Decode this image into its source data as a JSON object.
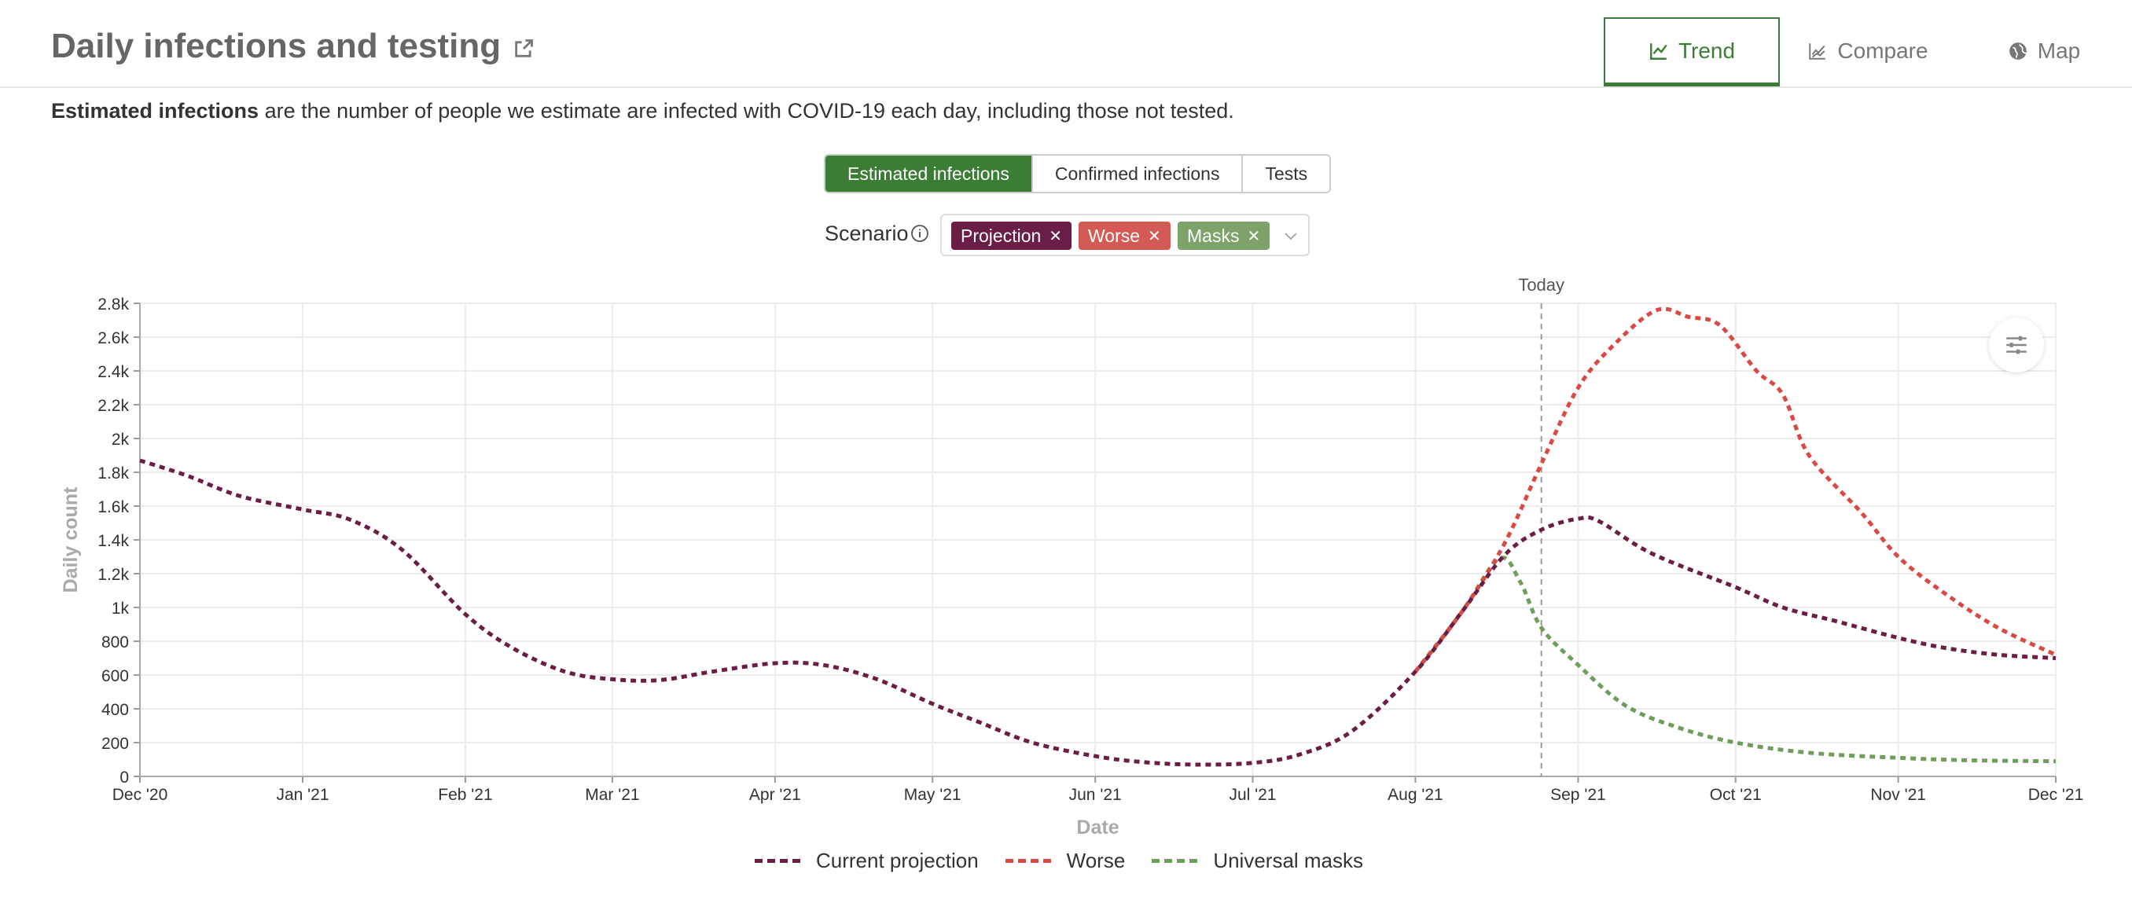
{
  "header": {
    "title": "Daily infections and testing",
    "tabs": [
      {
        "label": "Trend",
        "icon": "line-chart-icon",
        "active": true
      },
      {
        "label": "Compare",
        "icon": "compare-chart-icon",
        "active": false
      },
      {
        "label": "Map",
        "icon": "globe-icon",
        "active": false
      }
    ]
  },
  "description": {
    "bold": "Estimated infections",
    "rest": " are the number of people we estimate are infected with COVID-19 each day, including those not tested."
  },
  "metric_toggle": {
    "options": [
      "Estimated infections",
      "Confirmed infections",
      "Tests"
    ],
    "selected": "Estimated infections"
  },
  "scenario": {
    "label": "Scenario",
    "chips": [
      {
        "label": "Projection",
        "color": "#6b1e45"
      },
      {
        "label": "Worse",
        "color": "#d45b55"
      },
      {
        "label": "Masks",
        "color": "#7ea36a"
      }
    ]
  },
  "colors": {
    "accent": "#3b7d35",
    "projection": "#6b1e45",
    "worse": "#d94a45",
    "masks": "#6f9e5c"
  },
  "chart_data": {
    "type": "line",
    "xlabel": "Date",
    "ylabel": "Daily count",
    "ylim": [
      0,
      2800
    ],
    "yticks": [
      0,
      200,
      400,
      600,
      800,
      1000,
      1200,
      1400,
      1600,
      1800,
      2000,
      2200,
      2400,
      2600,
      2800
    ],
    "ytick_labels": [
      "0",
      "200",
      "400",
      "600",
      "800",
      "1k",
      "1.2k",
      "1.4k",
      "1.6k",
      "1.8k",
      "2k",
      "2.2k",
      "2.4k",
      "2.6k",
      "2.8k"
    ],
    "xlim": [
      "2020-12-01",
      "2021-12-01"
    ],
    "xticks": [
      "2020-12-01",
      "2021-01-01",
      "2021-02-01",
      "2021-03-01",
      "2021-04-01",
      "2021-05-01",
      "2021-06-01",
      "2021-07-01",
      "2021-08-01",
      "2021-09-01",
      "2021-10-01",
      "2021-11-01",
      "2021-12-01"
    ],
    "xtick_labels": [
      "Dec '20",
      "Jan '21",
      "Feb '21",
      "Mar '21",
      "Apr '21",
      "May '21",
      "Jun '21",
      "Jul '21",
      "Aug '21",
      "Sep '21",
      "Oct '21",
      "Nov '21",
      "Dec '21"
    ],
    "today": {
      "label": "Today",
      "date": "2021-08-25"
    },
    "grid": true,
    "legend_position": "bottom",
    "series": [
      {
        "name": "Current projection",
        "color": "#6b1e45",
        "points": [
          [
            "2020-12-01",
            1870
          ],
          [
            "2020-12-10",
            1780
          ],
          [
            "2020-12-20",
            1660
          ],
          [
            "2021-01-01",
            1580
          ],
          [
            "2021-01-10",
            1520
          ],
          [
            "2021-01-20",
            1340
          ],
          [
            "2021-02-01",
            960
          ],
          [
            "2021-02-10",
            760
          ],
          [
            "2021-02-20",
            620
          ],
          [
            "2021-03-01",
            575
          ],
          [
            "2021-03-10",
            570
          ],
          [
            "2021-03-20",
            620
          ],
          [
            "2021-04-01",
            670
          ],
          [
            "2021-04-10",
            660
          ],
          [
            "2021-04-20",
            580
          ],
          [
            "2021-05-01",
            430
          ],
          [
            "2021-05-10",
            320
          ],
          [
            "2021-05-20",
            200
          ],
          [
            "2021-06-01",
            120
          ],
          [
            "2021-06-10",
            85
          ],
          [
            "2021-06-20",
            70
          ],
          [
            "2021-07-01",
            80
          ],
          [
            "2021-07-10",
            130
          ],
          [
            "2021-07-20",
            270
          ],
          [
            "2021-08-01",
            620
          ],
          [
            "2021-08-10",
            980
          ],
          [
            "2021-08-18",
            1310
          ],
          [
            "2021-08-25",
            1460
          ],
          [
            "2021-09-01",
            1525
          ],
          [
            "2021-09-05",
            1510
          ],
          [
            "2021-09-15",
            1320
          ],
          [
            "2021-10-01",
            1120
          ],
          [
            "2021-10-10",
            1000
          ],
          [
            "2021-10-20",
            920
          ],
          [
            "2021-11-01",
            820
          ],
          [
            "2021-11-10",
            760
          ],
          [
            "2021-11-20",
            720
          ],
          [
            "2021-12-01",
            700
          ]
        ]
      },
      {
        "name": "Worse",
        "color": "#d94a45",
        "points": [
          [
            "2021-08-01",
            620
          ],
          [
            "2021-08-10",
            980
          ],
          [
            "2021-08-18",
            1380
          ],
          [
            "2021-08-25",
            1850
          ],
          [
            "2021-09-01",
            2300
          ],
          [
            "2021-09-08",
            2560
          ],
          [
            "2021-09-16",
            2760
          ],
          [
            "2021-09-22",
            2720
          ],
          [
            "2021-09-28",
            2670
          ],
          [
            "2021-10-05",
            2400
          ],
          [
            "2021-10-10",
            2260
          ],
          [
            "2021-10-15",
            1900
          ],
          [
            "2021-10-25",
            1560
          ],
          [
            "2021-11-01",
            1300
          ],
          [
            "2021-11-10",
            1080
          ],
          [
            "2021-11-20",
            880
          ],
          [
            "2021-12-01",
            720
          ]
        ]
      },
      {
        "name": "Universal masks",
        "color": "#6f9e5c",
        "points": [
          [
            "2021-08-01",
            620
          ],
          [
            "2021-08-10",
            980
          ],
          [
            "2021-08-17",
            1290
          ],
          [
            "2021-08-21",
            1150
          ],
          [
            "2021-08-25",
            880
          ],
          [
            "2021-09-01",
            660
          ],
          [
            "2021-09-10",
            420
          ],
          [
            "2021-09-20",
            290
          ],
          [
            "2021-10-01",
            200
          ],
          [
            "2021-10-15",
            140
          ],
          [
            "2021-11-01",
            110
          ],
          [
            "2021-11-15",
            95
          ],
          [
            "2021-12-01",
            90
          ]
        ]
      }
    ]
  }
}
